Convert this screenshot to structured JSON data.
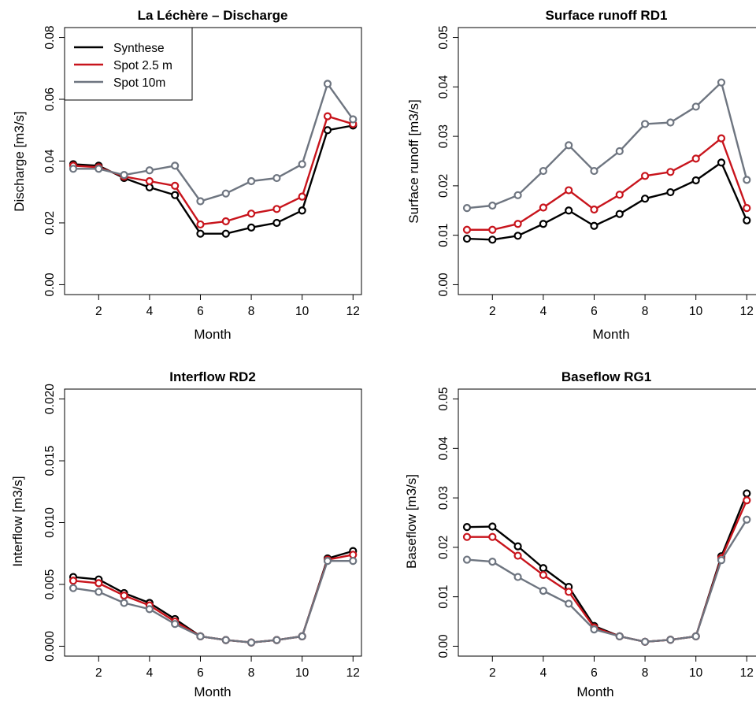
{
  "chart_data": [
    {
      "type": "line",
      "title": "La Léchère – Discharge",
      "xlabel": "Month",
      "ylabel": "Discharge [m3/s]",
      "xlim": [
        0.66,
        12.34
      ],
      "ylim": [
        -0.0032,
        0.0832
      ],
      "xticks": [
        2,
        4,
        6,
        8,
        10,
        12
      ],
      "xtick_labels": [
        "2",
        "4",
        "6",
        "8",
        "10",
        "12"
      ],
      "yticks": [
        0,
        0.02,
        0.04,
        0.06,
        0.08
      ],
      "ytick_labels": [
        "0.00",
        "0.02",
        "0.04",
        "0.06",
        "0.08"
      ],
      "x": [
        1,
        2,
        3,
        4,
        5,
        6,
        7,
        8,
        9,
        10,
        11,
        12
      ],
      "legend": "top-left",
      "grid": false,
      "series": [
        {
          "name": "Synthese",
          "color": "#000000",
          "values": [
            0.039,
            0.0385,
            0.0345,
            0.0315,
            0.029,
            0.0165,
            0.0165,
            0.0185,
            0.02,
            0.024,
            0.05,
            0.0515
          ]
        },
        {
          "name": "Spot 2.5 m",
          "color": "#c8141c",
          "values": [
            0.0385,
            0.038,
            0.035,
            0.0335,
            0.032,
            0.0195,
            0.0205,
            0.023,
            0.0245,
            0.0285,
            0.0545,
            0.052
          ]
        },
        {
          "name": "Spot 10m",
          "color": "#6e7580",
          "values": [
            0.0375,
            0.0375,
            0.0355,
            0.037,
            0.0385,
            0.027,
            0.0295,
            0.0335,
            0.0345,
            0.039,
            0.065,
            0.0535
          ]
        }
      ]
    },
    {
      "type": "line",
      "title": "Surface runoff RD1",
      "xlabel": "Month",
      "ylabel": "Surface runoff [m3/s]",
      "xlim": [
        0.66,
        12.34
      ],
      "ylim": [
        -0.002,
        0.052
      ],
      "xticks": [
        2,
        4,
        6,
        8,
        10,
        12
      ],
      "xtick_labels": [
        "2",
        "4",
        "6",
        "8",
        "10",
        "12"
      ],
      "yticks": [
        0,
        0.01,
        0.02,
        0.03,
        0.04,
        0.05
      ],
      "ytick_labels": [
        "0.00",
        "0.01",
        "0.02",
        "0.03",
        "0.04",
        "0.05"
      ],
      "x": [
        1,
        2,
        3,
        4,
        5,
        6,
        7,
        8,
        9,
        10,
        11,
        12
      ],
      "grid": false,
      "series": [
        {
          "name": "Synthese",
          "color": "#000000",
          "values": [
            0.0093,
            0.0091,
            0.0099,
            0.0123,
            0.015,
            0.0119,
            0.0143,
            0.0174,
            0.0187,
            0.0211,
            0.0247,
            0.013
          ]
        },
        {
          "name": "Spot 2.5 m",
          "color": "#c8141c",
          "values": [
            0.0111,
            0.0111,
            0.0123,
            0.0156,
            0.0191,
            0.0152,
            0.0182,
            0.022,
            0.0228,
            0.0255,
            0.0296,
            0.0155
          ]
        },
        {
          "name": "Spot 10m",
          "color": "#6e7580",
          "values": [
            0.0155,
            0.016,
            0.0181,
            0.023,
            0.0282,
            0.023,
            0.027,
            0.0325,
            0.0328,
            0.036,
            0.0409,
            0.0212
          ]
        }
      ]
    },
    {
      "type": "line",
      "title": "Interflow RD2",
      "xlabel": "Month",
      "ylabel": "Interflow [m3/s]",
      "xlim": [
        0.66,
        12.34
      ],
      "ylim": [
        -0.0008,
        0.0208
      ],
      "xticks": [
        2,
        4,
        6,
        8,
        10,
        12
      ],
      "xtick_labels": [
        "2",
        "4",
        "6",
        "8",
        "10",
        "12"
      ],
      "yticks": [
        0,
        0.005,
        0.01,
        0.015,
        0.02
      ],
      "ytick_labels": [
        "0.000",
        "0.005",
        "0.010",
        "0.015",
        "0.020"
      ],
      "x": [
        1,
        2,
        3,
        4,
        5,
        6,
        7,
        8,
        9,
        10,
        11,
        12
      ],
      "grid": false,
      "series": [
        {
          "name": "Synthese",
          "color": "#000000",
          "values": [
            0.0056,
            0.0054,
            0.0043,
            0.0035,
            0.0022,
            0.0008,
            0.0005,
            0.0003,
            0.0005,
            0.0008,
            0.0071,
            0.0077
          ]
        },
        {
          "name": "Spot 2.5 m",
          "color": "#c8141c",
          "values": [
            0.0053,
            0.0051,
            0.0041,
            0.0033,
            0.002,
            0.0008,
            0.0005,
            0.0003,
            0.0005,
            0.0008,
            0.007,
            0.0074
          ]
        },
        {
          "name": "Spot 10m",
          "color": "#6e7580",
          "values": [
            0.0047,
            0.0044,
            0.0035,
            0.003,
            0.0018,
            0.0008,
            0.0005,
            0.0003,
            0.0005,
            0.0008,
            0.0069,
            0.0069
          ]
        }
      ]
    },
    {
      "type": "line",
      "title": "Baseflow RG1",
      "xlabel": "Month",
      "ylabel": "Baseflow [m3/s]",
      "xlim": [
        0.66,
        12.34
      ],
      "ylim": [
        -0.002,
        0.052
      ],
      "xticks": [
        2,
        4,
        6,
        8,
        10,
        12
      ],
      "xtick_labels": [
        "2",
        "4",
        "6",
        "8",
        "10",
        "12"
      ],
      "yticks": [
        0,
        0.01,
        0.02,
        0.03,
        0.04,
        0.05
      ],
      "ytick_labels": [
        "0.00",
        "0.01",
        "0.02",
        "0.03",
        "0.04",
        "0.05"
      ],
      "x": [
        1,
        2,
        3,
        4,
        5,
        6,
        7,
        8,
        9,
        10,
        11,
        12
      ],
      "grid": false,
      "series": [
        {
          "name": "Synthese",
          "color": "#000000",
          "values": [
            0.0241,
            0.0242,
            0.0202,
            0.0158,
            0.012,
            0.0041,
            0.002,
            0.0009,
            0.0013,
            0.002,
            0.0182,
            0.0309
          ]
        },
        {
          "name": "Spot 2.5 m",
          "color": "#c8141c",
          "values": [
            0.0221,
            0.0221,
            0.0183,
            0.0144,
            0.011,
            0.0038,
            0.002,
            0.0009,
            0.0013,
            0.002,
            0.0178,
            0.0295
          ]
        },
        {
          "name": "Spot 10m",
          "color": "#6e7580",
          "values": [
            0.0175,
            0.0171,
            0.014,
            0.0112,
            0.0086,
            0.0034,
            0.002,
            0.0009,
            0.0013,
            0.002,
            0.0174,
            0.0256
          ]
        }
      ]
    }
  ]
}
